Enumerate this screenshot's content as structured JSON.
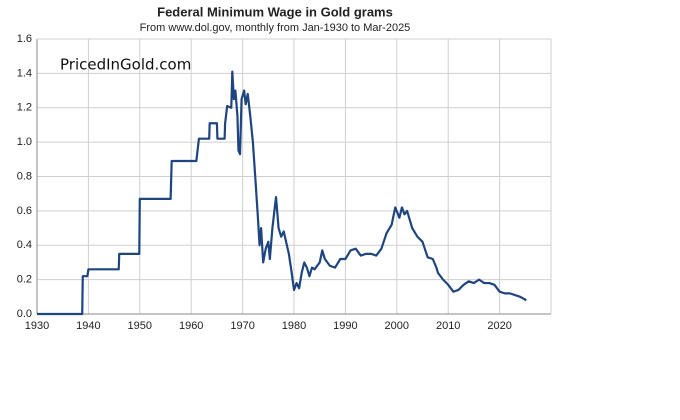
{
  "chart_data": {
    "type": "line",
    "title": "Federal Minimum Wage in Gold grams",
    "subtitle": "From www.dol.gov, monthly from Jan-1930 to Mar-2025",
    "annotation": "PricedInGold.com",
    "xlim": [
      1930,
      2030
    ],
    "xticks": [
      1930,
      1940,
      1950,
      1960,
      1970,
      1980,
      1990,
      2000,
      2010,
      2020
    ],
    "ylim": [
      0,
      1.6
    ],
    "yticks": [
      {
        "value": 0,
        "label": "0.0"
      },
      0.2,
      0.4,
      0.6,
      0.8,
      {
        "value": 1,
        "label": "1.0"
      },
      1.2,
      1.4,
      1.6
    ],
    "grid": true,
    "series": [
      {
        "color": "#1f4580",
        "x": [
          1930,
          1938.8,
          1938.9,
          1939.8,
          1940,
          1945.9,
          1946,
          1949.9,
          1950,
          1956,
          1956.2,
          1961,
          1961.5,
          1963.5,
          1963.6,
          1965,
          1965.1,
          1966.5,
          1966.6,
          1967,
          1967.8,
          1968,
          1968.3,
          1968.6,
          1969,
          1969.2,
          1969.5,
          1969.8,
          1970.3,
          1970.6,
          1971,
          1971.5,
          1972,
          1972.5,
          1973,
          1973.3,
          1973.6,
          1974,
          1974.5,
          1975,
          1975.3,
          1975.8,
          1976.5,
          1977,
          1977.5,
          1978,
          1979,
          1979.5,
          1980,
          1980.5,
          1981,
          1981.5,
          1982,
          1982.5,
          1983,
          1983.5,
          1984,
          1985,
          1985.5,
          1986,
          1987,
          1988,
          1989,
          1990,
          1991,
          1992,
          1993,
          1994,
          1995,
          1996,
          1997,
          1998,
          1999,
          1999.7,
          2000.5,
          2001,
          2001.5,
          2002,
          2003,
          2004,
          2005,
          2006,
          2007,
          2007.7,
          2008,
          2009,
          2010,
          2011,
          2012,
          2013,
          2014,
          2015,
          2016,
          2017,
          2018,
          2019,
          2020,
          2021,
          2022,
          2023,
          2024,
          2025.2
        ],
        "values": [
          0,
          0,
          0.22,
          0.22,
          0.26,
          0.26,
          0.35,
          0.35,
          0.67,
          0.67,
          0.89,
          0.89,
          1.02,
          1.02,
          1.11,
          1.11,
          1.02,
          1.02,
          1.11,
          1.21,
          1.2,
          1.41,
          1.25,
          1.3,
          1.15,
          0.95,
          0.93,
          1.25,
          1.3,
          1.22,
          1.28,
          1.15,
          1.0,
          0.78,
          0.55,
          0.4,
          0.5,
          0.3,
          0.38,
          0.42,
          0.32,
          0.5,
          0.68,
          0.5,
          0.45,
          0.48,
          0.35,
          0.25,
          0.14,
          0.18,
          0.15,
          0.24,
          0.3,
          0.27,
          0.22,
          0.27,
          0.26,
          0.3,
          0.37,
          0.32,
          0.28,
          0.27,
          0.32,
          0.32,
          0.37,
          0.38,
          0.34,
          0.35,
          0.35,
          0.34,
          0.38,
          0.47,
          0.52,
          0.62,
          0.56,
          0.62,
          0.58,
          0.6,
          0.5,
          0.45,
          0.42,
          0.33,
          0.32,
          0.27,
          0.24,
          0.2,
          0.17,
          0.13,
          0.14,
          0.17,
          0.19,
          0.18,
          0.2,
          0.18,
          0.18,
          0.17,
          0.13,
          0.12,
          0.12,
          0.11,
          0.1,
          0.08
        ]
      }
    ]
  }
}
